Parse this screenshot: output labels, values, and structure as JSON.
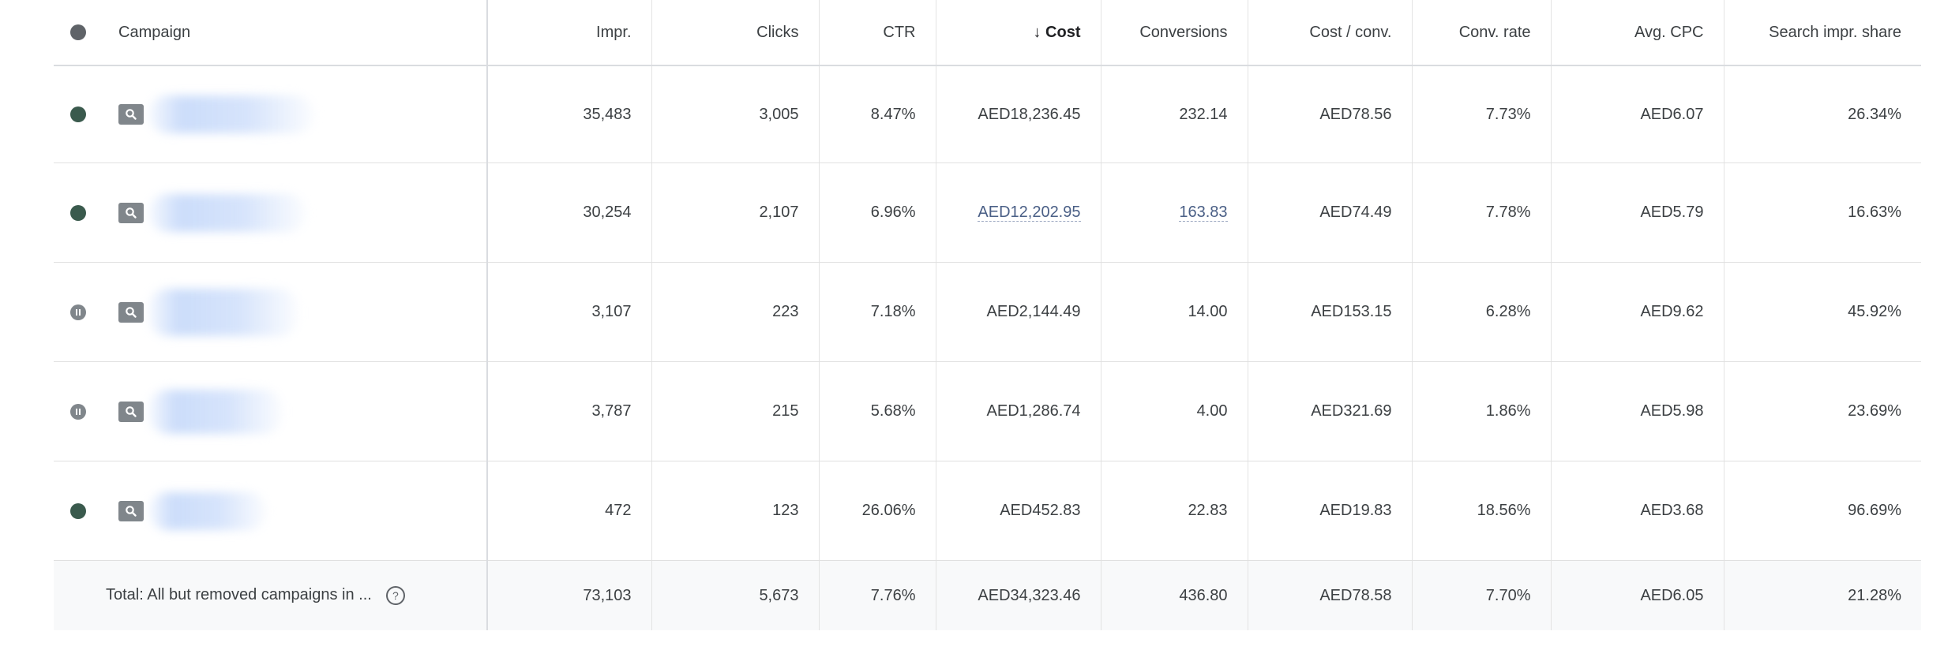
{
  "header": {
    "campaign": "Campaign",
    "columns": [
      "Impr.",
      "Clicks",
      "CTR",
      "Cost",
      "Conversions",
      "Cost / conv.",
      "Conv. rate",
      "Avg. CPC",
      "Search impr. share"
    ],
    "sort_arrow": "↓",
    "sorted_column": "Cost"
  },
  "rows": [
    {
      "status": "enabled",
      "cells": [
        "35,483",
        "3,005",
        "8.47%",
        "AED18,236.45",
        "232.14",
        "AED78.56",
        "7.73%",
        "AED6.07",
        "26.34%"
      ]
    },
    {
      "status": "enabled",
      "cells": [
        "30,254",
        "2,107",
        "6.96%",
        "AED12,202.95",
        "163.83",
        "AED74.49",
        "7.78%",
        "AED5.79",
        "16.63%"
      ]
    },
    {
      "status": "paused",
      "cells": [
        "3,107",
        "223",
        "7.18%",
        "AED2,144.49",
        "14.00",
        "AED153.15",
        "6.28%",
        "AED9.62",
        "45.92%"
      ]
    },
    {
      "status": "paused",
      "cells": [
        "3,787",
        "215",
        "5.68%",
        "AED1,286.74",
        "4.00",
        "AED321.69",
        "1.86%",
        "AED5.98",
        "23.69%"
      ]
    },
    {
      "status": "enabled",
      "cells": [
        "472",
        "123",
        "26.06%",
        "AED452.83",
        "22.83",
        "AED19.83",
        "18.56%",
        "AED3.68",
        "96.69%"
      ]
    }
  ],
  "total": {
    "label": "Total: All but removed campaigns in ...",
    "help": "?",
    "cells": [
      "73,103",
      "5,673",
      "7.76%",
      "AED34,323.46",
      "436.80",
      "AED78.58",
      "7.70%",
      "AED6.05",
      "21.28%"
    ]
  },
  "colors": {
    "enabled_dot": "#3a5a4d",
    "paused_dot": "#80868b",
    "footer_bg": "#f8f9fa",
    "link_text": "#4a5f86"
  }
}
